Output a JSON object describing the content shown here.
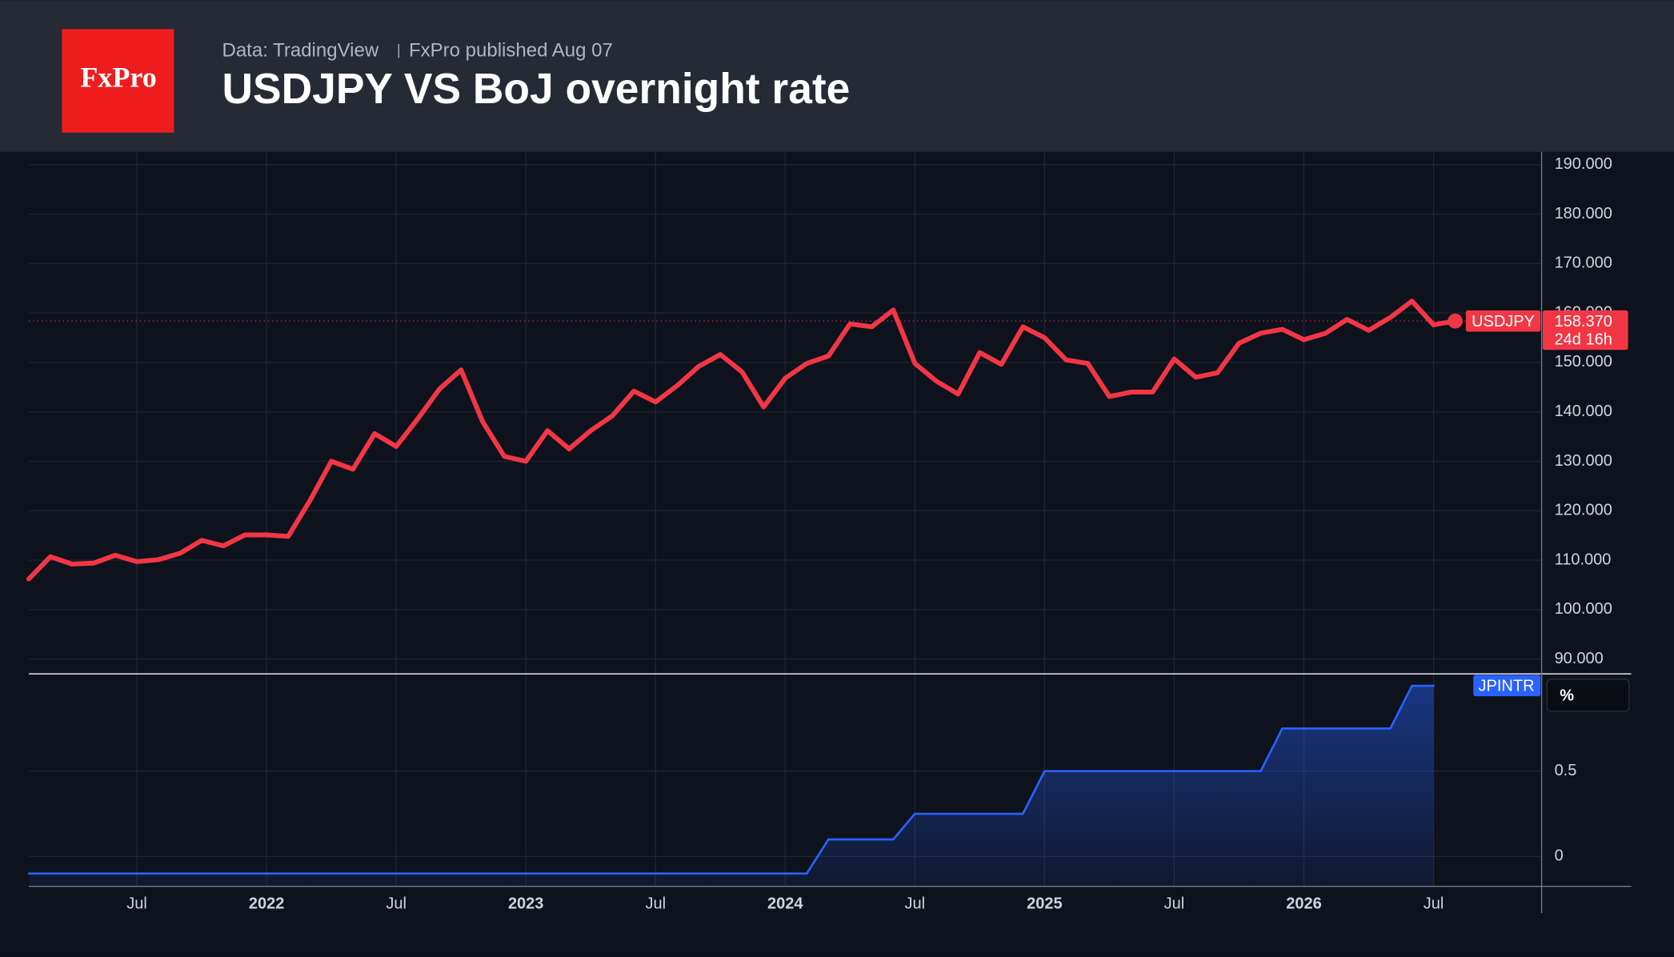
{
  "header": {
    "logo": "FxPro",
    "source": "Data: TradingView",
    "publisher": "FxPro published Aug 07",
    "title": "USDJPY VS BoJ overnight rate"
  },
  "chart_data": {
    "type": "line",
    "x": [
      "2021-02",
      "2021-03",
      "2021-04",
      "2021-05",
      "2021-06",
      "2021-07",
      "2021-08",
      "2021-09",
      "2021-10",
      "2021-11",
      "2021-12",
      "2022-01",
      "2022-02",
      "2022-03",
      "2022-04",
      "2022-05",
      "2022-06",
      "2022-07",
      "2022-08",
      "2022-09",
      "2022-10",
      "2022-11",
      "2022-12",
      "2023-01",
      "2023-02",
      "2023-03",
      "2023-04",
      "2023-05",
      "2023-06",
      "2023-07",
      "2023-08",
      "2023-09",
      "2023-10",
      "2023-11",
      "2023-12",
      "2024-01",
      "2024-02",
      "2024-03",
      "2024-04",
      "2024-05",
      "2024-06",
      "2024-07",
      "2024-08",
      "2024-09",
      "2024-10",
      "2024-11",
      "2024-12",
      "2025-01",
      "2025-02",
      "2025-03",
      "2025-04",
      "2025-05",
      "2025-06",
      "2025-07",
      "2025-08",
      "2025-09",
      "2025-10",
      "2025-11",
      "2025-12",
      "2026-01",
      "2026-02",
      "2026-03",
      "2026-04",
      "2026-05",
      "2026-06",
      "2026-07",
      "2026-08"
    ],
    "xlim": [
      "2021-02",
      "2026-12"
    ],
    "xticks": [
      {
        "value": "2021-07",
        "label": "Jul"
      },
      {
        "value": "2022-01",
        "label": "2022"
      },
      {
        "value": "2022-07",
        "label": "Jul"
      },
      {
        "value": "2023-01",
        "label": "2023"
      },
      {
        "value": "2023-07",
        "label": "Jul"
      },
      {
        "value": "2024-01",
        "label": "2024"
      },
      {
        "value": "2024-07",
        "label": "Jul"
      },
      {
        "value": "2025-01",
        "label": "2025"
      },
      {
        "value": "2025-07",
        "label": "Jul"
      },
      {
        "value": "2026-01",
        "label": "2026"
      },
      {
        "value": "2026-07",
        "label": "Jul"
      }
    ],
    "ylim": [
      87,
      192.6
    ],
    "yticks": [
      {
        "value": 90,
        "label": "90.000"
      },
      {
        "value": 100,
        "label": "100.000"
      },
      {
        "value": 110,
        "label": "110.000"
      },
      {
        "value": 120,
        "label": "120.000"
      },
      {
        "value": 130,
        "label": "130.000"
      },
      {
        "value": 140,
        "label": "140.000"
      },
      {
        "value": 150,
        "label": "150.000"
      },
      {
        "value": 160,
        "label": "160.000"
      },
      {
        "value": 170,
        "label": "170.000"
      },
      {
        "value": 180,
        "label": "180.000"
      },
      {
        "value": 190,
        "label": "190.000"
      }
    ],
    "y2lim": [
      -0.175,
      1.07
    ],
    "y2ticks": [
      0,
      0.5
    ],
    "y2_unit": "%",
    "grid": true,
    "series": [
      {
        "name": "USDJPY",
        "color": "#f23645",
        "countdown": "24d 16h",
        "values": [
          106.2,
          110.7,
          109.2,
          109.4,
          111.0,
          109.7,
          110.1,
          111.4,
          114.0,
          112.9,
          115.1,
          115.1,
          114.8,
          122.0,
          130.0,
          128.4,
          135.6,
          133.0,
          138.6,
          144.6,
          148.5,
          138.0,
          131.0,
          130.0,
          136.2,
          132.5,
          136.2,
          139.2,
          144.2,
          142.0,
          145.3,
          149.2,
          151.6,
          148.1,
          141.0,
          146.8,
          149.8,
          151.3,
          157.8,
          157.2,
          160.6,
          149.8,
          146.2,
          143.6,
          152.0,
          149.6,
          157.2,
          155.0,
          150.5,
          149.8,
          143.1,
          144.0,
          144.0,
          150.7,
          147.0,
          147.9,
          153.9,
          155.9,
          156.7,
          154.6,
          155.9,
          158.7,
          156.5,
          159.1,
          162.4,
          157.6,
          158.37
        ],
        "value_labels": [
          null,
          null,
          null,
          null,
          null,
          null,
          null,
          null,
          null,
          null,
          null,
          null,
          null,
          null,
          null,
          null,
          null,
          null,
          null,
          null,
          null,
          null,
          null,
          null,
          null,
          null,
          null,
          null,
          null,
          null,
          null,
          null,
          null,
          null,
          null,
          null,
          null,
          null,
          null,
          null,
          null,
          null,
          null,
          null,
          null,
          null,
          null,
          null,
          null,
          null,
          null,
          null,
          null,
          null,
          null,
          null,
          null,
          null,
          null,
          null,
          null,
          null,
          null,
          null,
          null,
          null,
          "158.370"
        ]
      },
      {
        "name": "JPINTR",
        "color": "#2962ff",
        "axis": "y2",
        "fill": true,
        "values": [
          -0.1,
          -0.1,
          -0.1,
          -0.1,
          -0.1,
          -0.1,
          -0.1,
          -0.1,
          -0.1,
          -0.1,
          -0.1,
          -0.1,
          -0.1,
          -0.1,
          -0.1,
          -0.1,
          -0.1,
          -0.1,
          -0.1,
          -0.1,
          -0.1,
          -0.1,
          -0.1,
          -0.1,
          -0.1,
          -0.1,
          -0.1,
          -0.1,
          -0.1,
          -0.1,
          -0.1,
          -0.1,
          -0.1,
          -0.1,
          -0.1,
          -0.1,
          -0.1,
          0.1,
          0.1,
          0.1,
          0.1,
          0.25,
          0.25,
          0.25,
          0.25,
          0.25,
          0.25,
          0.5,
          0.5,
          0.5,
          0.5,
          0.5,
          0.5,
          0.5,
          0.5,
          0.5,
          0.5,
          0.5,
          0.75,
          0.75,
          0.75,
          0.75,
          0.75,
          0.75,
          1.0,
          1.0,
          null
        ]
      }
    ]
  }
}
